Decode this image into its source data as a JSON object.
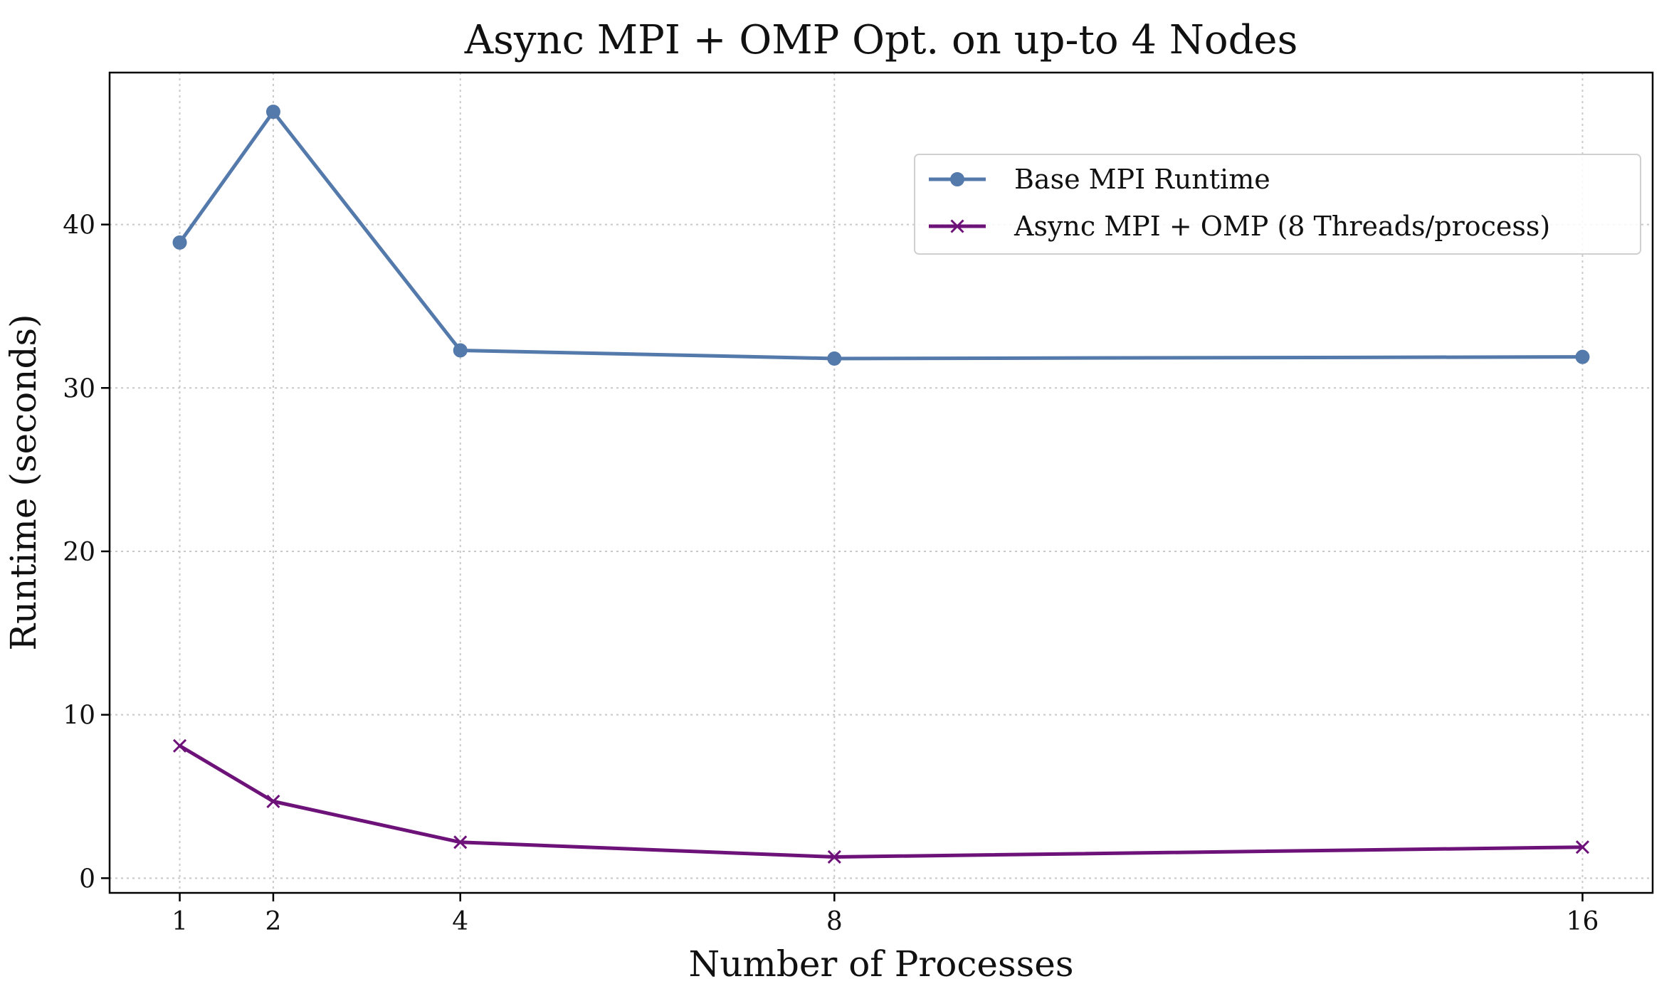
{
  "chart_data": {
    "type": "line",
    "title": "Async MPI + OMP Opt. on up-to 4 Nodes",
    "xlabel": "Number of Processes",
    "ylabel": "Runtime (seconds)",
    "x": [
      1,
      2,
      4,
      8,
      16
    ],
    "x_ticks": [
      "1",
      "2",
      "4",
      "8",
      "16"
    ],
    "y_ticks": [
      "0",
      "10",
      "20",
      "30",
      "40"
    ],
    "xlim": [
      0.25,
      16.75
    ],
    "ylim": [
      -0.9,
      49.3
    ],
    "grid": true,
    "legend_position": "upper-right",
    "series": [
      {
        "name": "Base MPI Runtime",
        "color": "#5479ab",
        "marker": "circle",
        "values": [
          38.9,
          46.9,
          32.3,
          31.8,
          31.9
        ]
      },
      {
        "name": "Async MPI + OMP (8 Threads/process)",
        "color": "#6d1278",
        "marker": "x",
        "values": [
          8.1,
          4.7,
          2.2,
          1.3,
          1.9
        ]
      }
    ]
  }
}
